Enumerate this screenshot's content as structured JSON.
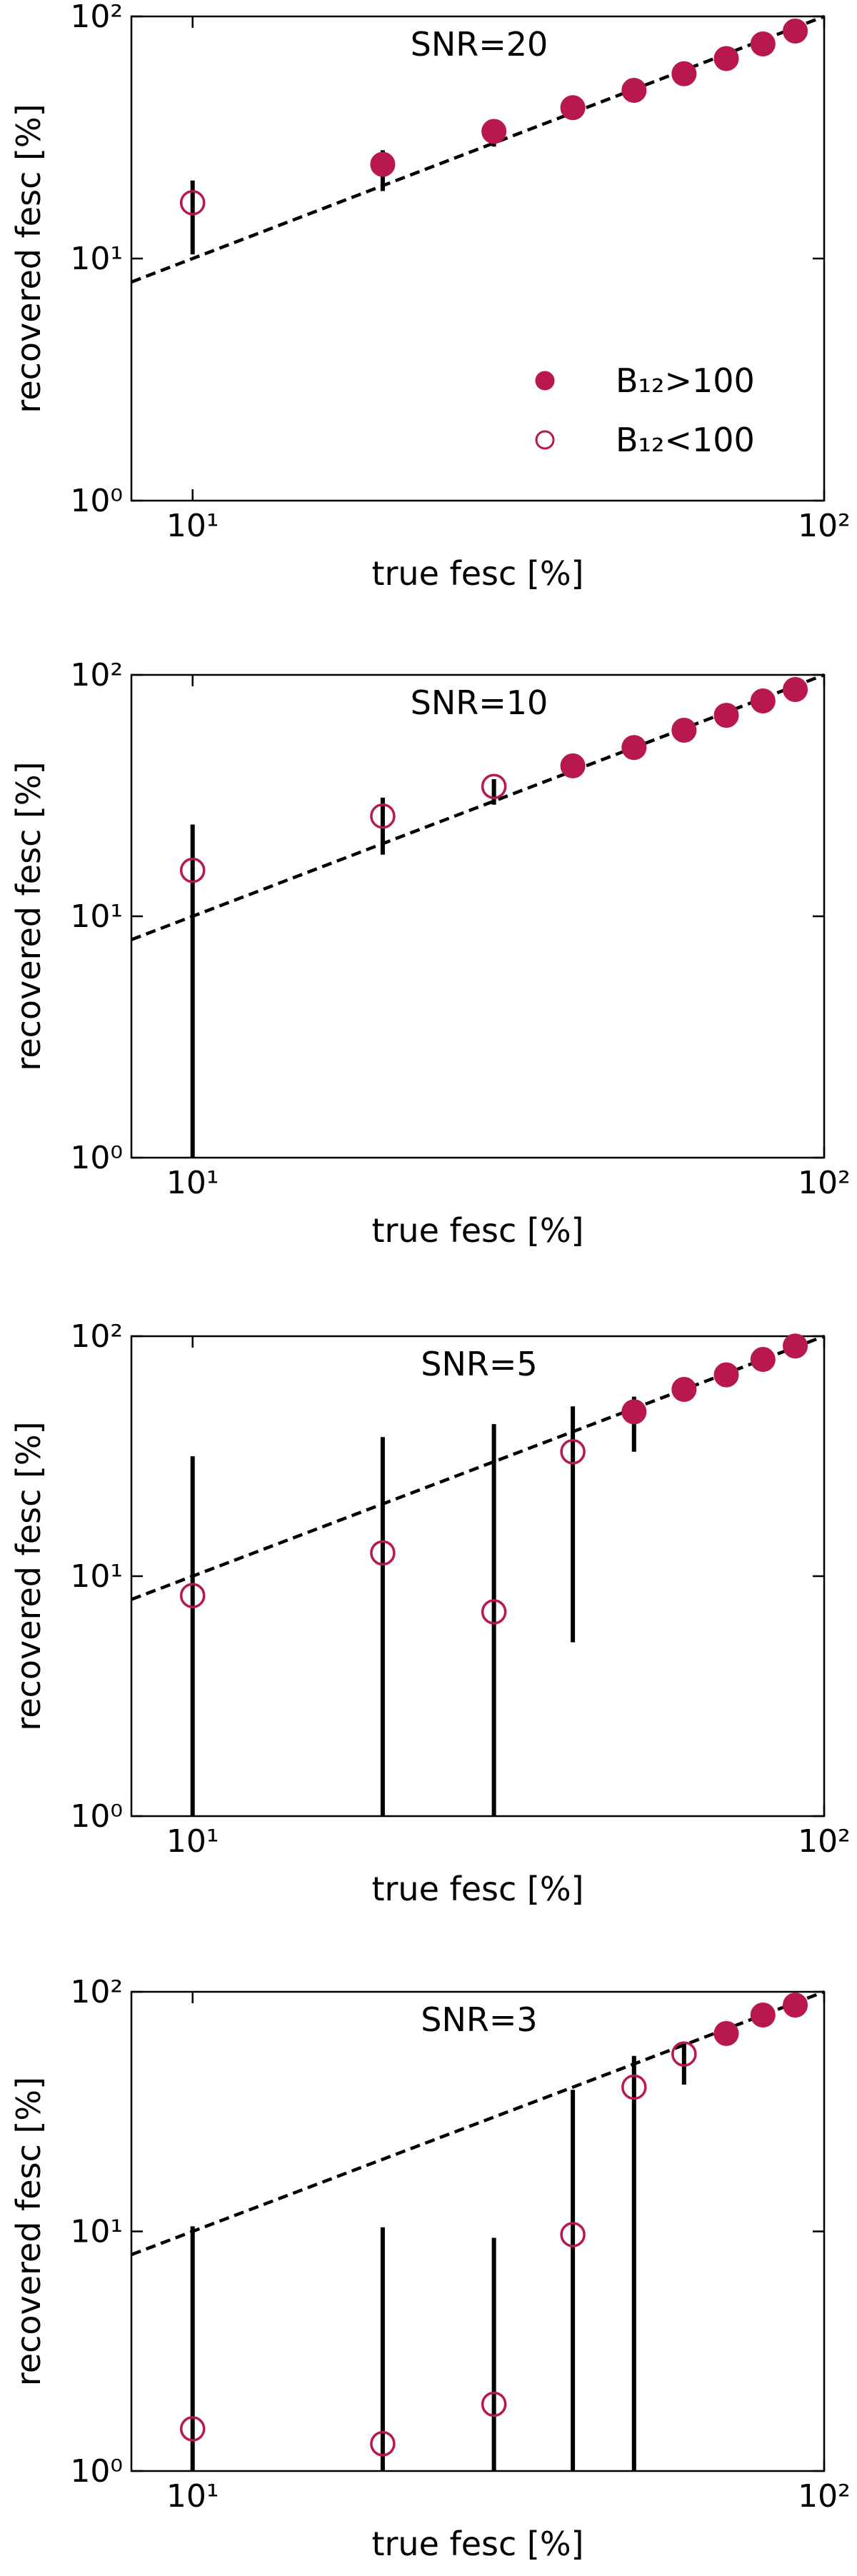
{
  "chart_data": [
    {
      "type": "scatter",
      "title": "SNR=20",
      "xlabel": "true fesc [%]",
      "ylabel": "recovered fesc [%]",
      "x": [
        10,
        20,
        30,
        40,
        50,
        60,
        70,
        80,
        90
      ],
      "series": [
        {
          "name": "B₁₂>100",
          "color": "#b8174f",
          "filled": true,
          "values": [
            null,
            24.5,
            33.5,
            42,
            49.5,
            58,
            67,
            77,
            87
          ]
        },
        {
          "name": "B₁₂<100",
          "color": "#b8174f",
          "filled": false,
          "values": [
            17,
            null,
            null,
            null,
            null,
            null,
            null,
            null,
            null
          ]
        }
      ],
      "error_low": [
        10.4,
        19,
        29,
        38,
        46,
        56,
        65,
        75,
        85
      ],
      "error_high": [
        21,
        28,
        37,
        45,
        53,
        61,
        70,
        79,
        89
      ],
      "legend": "lower right",
      "log_x": true,
      "log_y": true,
      "xlim": [
        8,
        100
      ],
      "ylim": [
        1,
        100
      ],
      "xticks": [
        {
          "value": 10,
          "label": "10¹"
        },
        {
          "value": 100,
          "label": "10²"
        }
      ],
      "yticks": [
        {
          "value": 1,
          "label": "10⁰"
        },
        {
          "value": 10,
          "label": "10¹"
        },
        {
          "value": 100,
          "label": "10²"
        }
      ]
    },
    {
      "type": "scatter",
      "title": "SNR=10",
      "xlabel": "true fesc [%]",
      "ylabel": "recovered fesc [%]",
      "x": [
        10,
        20,
        30,
        40,
        50,
        60,
        70,
        80,
        90
      ],
      "series": [
        {
          "color": "#b8174f",
          "filled": true,
          "values": [
            null,
            null,
            null,
            42,
            50,
            59,
            68,
            78,
            87
          ]
        },
        {
          "color": "#b8174f",
          "filled": false,
          "values": [
            15.5,
            26,
            34.5,
            null,
            null,
            null,
            null,
            null,
            null
          ]
        }
      ],
      "error_low": [
        1,
        18,
        29,
        38,
        46,
        56,
        65,
        75,
        85
      ],
      "error_high": [
        24,
        31,
        37,
        45,
        53,
        62,
        70,
        80,
        89
      ],
      "log_x": true,
      "log_y": true,
      "xlim": [
        8,
        100
      ],
      "ylim": [
        1,
        100
      ],
      "xticks": [
        {
          "value": 10,
          "label": "10¹"
        },
        {
          "value": 100,
          "label": "10²"
        }
      ],
      "yticks": [
        {
          "value": 1,
          "label": "10⁰"
        },
        {
          "value": 10,
          "label": "10¹"
        },
        {
          "value": 100,
          "label": "10²"
        }
      ]
    },
    {
      "type": "scatter",
      "title": "SNR=5",
      "xlabel": "true fesc [%]",
      "ylabel": "recovered fesc [%]",
      "x": [
        10,
        20,
        30,
        40,
        50,
        60,
        70,
        80,
        90
      ],
      "series": [
        {
          "color": "#b8174f",
          "filled": true,
          "values": [
            null,
            null,
            null,
            null,
            48.4,
            60,
            69,
            80,
            91
          ]
        },
        {
          "color": "#b8174f",
          "filled": false,
          "values": [
            8.3,
            12.5,
            7.1,
            33,
            null,
            null,
            null,
            null,
            null
          ]
        }
      ],
      "error_low": [
        1,
        1,
        1,
        5.3,
        33,
        55,
        66,
        77,
        88
      ],
      "error_high": [
        31.6,
        38,
        43,
        51,
        56,
        65,
        72,
        82,
        93
      ],
      "log_x": true,
      "log_y": true,
      "xlim": [
        8,
        100
      ],
      "ylim": [
        1,
        100
      ],
      "xticks": [
        {
          "value": 10,
          "label": "10¹"
        },
        {
          "value": 100,
          "label": "10²"
        }
      ],
      "yticks": [
        {
          "value": 1,
          "label": "10⁰"
        },
        {
          "value": 10,
          "label": "10¹"
        },
        {
          "value": 100,
          "label": "10²"
        }
      ]
    },
    {
      "type": "scatter",
      "title": "SNR=3",
      "xlabel": "true fesc [%]",
      "ylabel": "recovered fesc [%]",
      "x": [
        10,
        20,
        30,
        40,
        50,
        60,
        70,
        80,
        90
      ],
      "series": [
        {
          "color": "#b8174f",
          "filled": true,
          "values": [
            null,
            null,
            null,
            null,
            null,
            null,
            67,
            80,
            88
          ]
        },
        {
          "color": "#b8174f",
          "filled": false,
          "values": [
            1.5,
            1.3,
            1.9,
            9.7,
            40,
            55,
            null,
            null,
            null
          ]
        }
      ],
      "error_low": [
        1,
        1,
        1,
        1,
        1,
        41,
        63,
        75,
        86
      ],
      "error_high": [
        10.5,
        10.4,
        9.4,
        39,
        54,
        61,
        71,
        83,
        93
      ],
      "log_x": true,
      "log_y": true,
      "xlim": [
        8,
        100
      ],
      "ylim": [
        1,
        100
      ],
      "xticks": [
        {
          "value": 10,
          "label": "10¹"
        },
        {
          "value": 100,
          "label": "10²"
        }
      ],
      "yticks": [
        {
          "value": 1,
          "label": "10⁰"
        },
        {
          "value": 10,
          "label": "10¹"
        },
        {
          "value": 100,
          "label": "10²"
        }
      ]
    }
  ]
}
